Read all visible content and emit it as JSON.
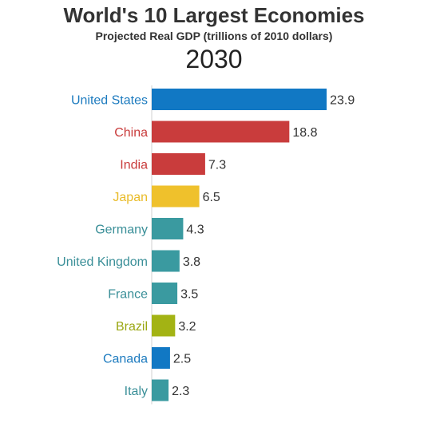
{
  "chart_data": {
    "type": "bar",
    "orientation": "horizontal",
    "title": "World's 10 Largest Economies",
    "subtitle": "Projected Real GDP (trillions of 2010 dollars)",
    "year_label": "2030",
    "categories": [
      "United States",
      "China",
      "India",
      "Japan",
      "Germany",
      "United Kingdom",
      "France",
      "Brazil",
      "Canada",
      "Italy"
    ],
    "values": [
      23.9,
      18.8,
      7.3,
      6.5,
      4.3,
      3.8,
      3.5,
      3.2,
      2.5,
      2.3
    ],
    "value_labels": [
      "23.9",
      "18.8",
      "7.3",
      "6.5",
      "4.3",
      "3.8",
      "3.5",
      "3.2",
      "2.5",
      "2.3"
    ],
    "colors": [
      "#1178c4",
      "#c93c3c",
      "#c93c3c",
      "#efc12c",
      "#3a9aa0",
      "#3a9aa0",
      "#3a9aa0",
      "#a3b314",
      "#1178c4",
      "#3a9aa0"
    ],
    "label_colors": [
      "#1d7bbf",
      "#c93c3c",
      "#c93c3c",
      "#e9bb28",
      "#3a8f98",
      "#3a8f98",
      "#3a8f98",
      "#9aa712",
      "#1d7bbf",
      "#3a8f98"
    ],
    "xlim": [
      0,
      24
    ],
    "grid": false,
    "legend": "none"
  }
}
